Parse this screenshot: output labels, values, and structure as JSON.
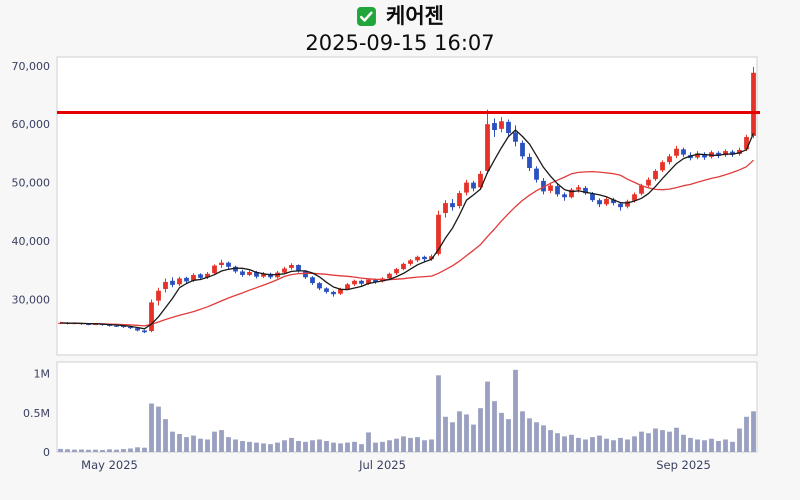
{
  "header": {
    "title": "케어젠",
    "subtitle": "2025-09-15 16:07",
    "check_icon": "green-checkbox-icon"
  },
  "chart_data": {
    "type": "candlestick",
    "title": "케어젠",
    "timestamp": "2025-09-15 16:07",
    "resistance_level": 62000,
    "y_domain": [
      20500,
      71500
    ],
    "volume_domain": [
      0,
      1150000
    ],
    "y_ticks": [
      30000,
      40000,
      50000,
      60000,
      70000
    ],
    "volume_ticks": [
      {
        "value": 0,
        "label": "0"
      },
      {
        "value": 500000,
        "label": "0.5M"
      },
      {
        "value": 1000000,
        "label": "1M"
      }
    ],
    "x_ticks": [
      {
        "index": 7,
        "label": "May 2025"
      },
      {
        "index": 46,
        "label": "Jul 2025"
      },
      {
        "index": 89,
        "label": "Sep 2025"
      }
    ],
    "ma_fast_period": 5,
    "ma_slow_period": 20,
    "colors": {
      "up": "#e6332a",
      "down": "#2b50c0",
      "ma_fast": "#1a1a1a",
      "ma_slow": "#e23b3b",
      "resistance": "#e50000",
      "volume": "#99a0c0",
      "panel_border": "#cfcfd4",
      "axis_text": "#3a4060",
      "check_green": "#22a63c"
    },
    "candles": [
      [
        26000,
        26200,
        25800,
        26000,
        40000
      ],
      [
        26000,
        26150,
        25750,
        25900,
        35000
      ],
      [
        25900,
        26100,
        25800,
        25950,
        30000
      ],
      [
        25950,
        26050,
        25650,
        25800,
        32000
      ],
      [
        25800,
        25950,
        25600,
        25750,
        28000
      ],
      [
        25750,
        25950,
        25650,
        25800,
        30000
      ],
      [
        25800,
        25900,
        25500,
        25650,
        26000
      ],
      [
        25650,
        25800,
        25350,
        25500,
        34000
      ],
      [
        25500,
        25650,
        25300,
        25450,
        30000
      ],
      [
        25450,
        25550,
        25150,
        25300,
        38000
      ],
      [
        25300,
        25400,
        24950,
        25100,
        45000
      ],
      [
        25100,
        25200,
        24550,
        24700,
        60000
      ],
      [
        24700,
        24800,
        24250,
        24400,
        55000
      ],
      [
        24600,
        30000,
        24400,
        29500,
        620000
      ],
      [
        29800,
        32000,
        29000,
        31500,
        580000
      ],
      [
        31800,
        33600,
        31200,
        33000,
        420000
      ],
      [
        33200,
        33800,
        32100,
        32500,
        260000
      ],
      [
        32600,
        33900,
        32300,
        33600,
        230000
      ],
      [
        33700,
        33900,
        32700,
        33100,
        190000
      ],
      [
        33200,
        34500,
        33000,
        34200,
        210000
      ],
      [
        34300,
        34500,
        33400,
        33700,
        170000
      ],
      [
        33800,
        34700,
        33500,
        34400,
        160000
      ],
      [
        34500,
        36000,
        34300,
        35800,
        260000
      ],
      [
        35900,
        36800,
        35400,
        36300,
        280000
      ],
      [
        36300,
        36500,
        35300,
        35600,
        190000
      ],
      [
        35600,
        35800,
        34500,
        34800,
        160000
      ],
      [
        34800,
        35100,
        33900,
        34200,
        140000
      ],
      [
        34200,
        35000,
        34000,
        34700,
        130000
      ],
      [
        34700,
        34900,
        33600,
        33900,
        120000
      ],
      [
        33900,
        34700,
        33700,
        34400,
        110000
      ],
      [
        34400,
        34600,
        33500,
        33800,
        100000
      ],
      [
        33800,
        34900,
        33600,
        34600,
        120000
      ],
      [
        34600,
        35600,
        34400,
        35300,
        150000
      ],
      [
        35400,
        36200,
        35100,
        35900,
        180000
      ],
      [
        35900,
        36000,
        34600,
        34900,
        140000
      ],
      [
        34800,
        35000,
        33500,
        33800,
        130000
      ],
      [
        33800,
        34000,
        32500,
        32800,
        150000
      ],
      [
        32800,
        33000,
        31600,
        31900,
        160000
      ],
      [
        31900,
        32100,
        31000,
        31300,
        140000
      ],
      [
        31300,
        31500,
        30500,
        30900,
        120000
      ],
      [
        31000,
        32000,
        30800,
        31800,
        110000
      ],
      [
        31800,
        32800,
        31600,
        32600,
        120000
      ],
      [
        32600,
        33400,
        32300,
        33200,
        130000
      ],
      [
        33200,
        33400,
        32400,
        32700,
        100000
      ],
      [
        32700,
        33600,
        32500,
        33400,
        250000
      ],
      [
        33400,
        33600,
        32700,
        33000,
        120000
      ],
      [
        33100,
        33800,
        32900,
        33600,
        130000
      ],
      [
        33600,
        34600,
        33400,
        34400,
        150000
      ],
      [
        34500,
        35400,
        34200,
        35200,
        170000
      ],
      [
        35200,
        36300,
        35000,
        36100,
        200000
      ],
      [
        36100,
        36900,
        35800,
        36700,
        180000
      ],
      [
        36700,
        37500,
        36400,
        37300,
        190000
      ],
      [
        37300,
        37500,
        36500,
        36900,
        150000
      ],
      [
        36900,
        37700,
        36600,
        37400,
        160000
      ],
      [
        37800,
        45200,
        37500,
        44500,
        980000
      ],
      [
        44800,
        47000,
        44000,
        46500,
        450000
      ],
      [
        46500,
        47200,
        45200,
        45800,
        380000
      ],
      [
        46000,
        48600,
        45600,
        48200,
        520000
      ],
      [
        48300,
        50500,
        47800,
        50000,
        480000
      ],
      [
        50000,
        50300,
        48500,
        49000,
        350000
      ],
      [
        49200,
        52000,
        48900,
        51500,
        560000
      ],
      [
        52000,
        62500,
        51500,
        60000,
        900000
      ],
      [
        60200,
        61000,
        57800,
        59000,
        650000
      ],
      [
        59200,
        61200,
        58600,
        60500,
        500000
      ],
      [
        60400,
        60800,
        58000,
        58500,
        420000
      ],
      [
        58600,
        59800,
        56200,
        57000,
        1050000
      ],
      [
        56800,
        57200,
        54000,
        54500,
        520000
      ],
      [
        54400,
        55000,
        52000,
        52500,
        430000
      ],
      [
        52400,
        52800,
        50000,
        50500,
        380000
      ],
      [
        50300,
        50800,
        48000,
        48500,
        340000
      ],
      [
        48600,
        50000,
        48200,
        49500,
        280000
      ],
      [
        49400,
        49700,
        47600,
        48000,
        240000
      ],
      [
        48000,
        48300,
        46900,
        47500,
        200000
      ],
      [
        47500,
        49100,
        47300,
        48800,
        220000
      ],
      [
        48800,
        49600,
        48300,
        49200,
        180000
      ],
      [
        49100,
        49400,
        47900,
        48200,
        160000
      ],
      [
        48100,
        48400,
        46700,
        47000,
        190000
      ],
      [
        47000,
        47300,
        45800,
        46300,
        210000
      ],
      [
        46300,
        47500,
        46000,
        47200,
        170000
      ],
      [
        47100,
        47400,
        46100,
        46500,
        150000
      ],
      [
        46400,
        46700,
        45200,
        45800,
        180000
      ],
      [
        45900,
        47100,
        45600,
        46800,
        160000
      ],
      [
        46900,
        48300,
        46600,
        48000,
        200000
      ],
      [
        48100,
        49800,
        47800,
        49500,
        260000
      ],
      [
        49500,
        50900,
        49200,
        50500,
        240000
      ],
      [
        50600,
        52300,
        50300,
        52000,
        300000
      ],
      [
        52100,
        53800,
        51800,
        53500,
        280000
      ],
      [
        53500,
        54900,
        53100,
        54500,
        260000
      ],
      [
        54600,
        56300,
        54200,
        55800,
        310000
      ],
      [
        55700,
        56000,
        54400,
        54800,
        220000
      ],
      [
        54700,
        55200,
        53800,
        54200,
        180000
      ],
      [
        54300,
        55400,
        54000,
        55000,
        160000
      ],
      [
        54900,
        55200,
        53900,
        54300,
        150000
      ],
      [
        54400,
        55500,
        54100,
        55200,
        170000
      ],
      [
        55100,
        55400,
        54200,
        54600,
        140000
      ],
      [
        54700,
        55700,
        54400,
        55400,
        160000
      ],
      [
        55300,
        55600,
        54400,
        54800,
        130000
      ],
      [
        54900,
        56000,
        54600,
        55600,
        300000
      ],
      [
        55700,
        58200,
        55400,
        57800,
        450000
      ],
      [
        58000,
        69800,
        57600,
        68800,
        520000
      ]
    ]
  }
}
